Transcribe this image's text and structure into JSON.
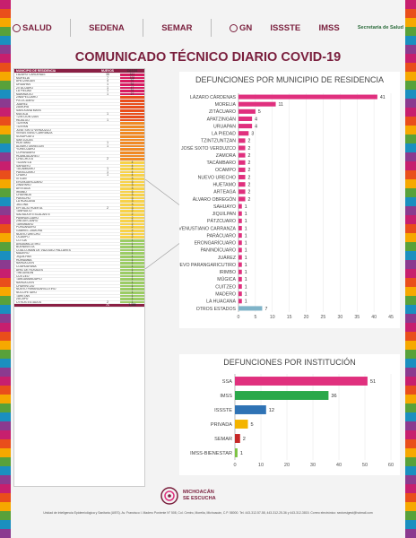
{
  "header": {
    "logos": [
      "SALUD",
      "SEDENA",
      "SEMAR",
      "GN",
      "ISSSTE",
      "IMSS",
      "Secretaría de Salud"
    ]
  },
  "title": "COMUNICADO TÉCNICO DIARIO COVID-19",
  "table": {
    "headers": [
      "MUNICIPIO DE RESIDENCIA",
      "NUEVOS",
      "CASOS"
    ],
    "rows": [
      [
        "LÁZARO CÁRDENAS",
        "38",
        "641"
      ],
      [
        "MORELIA",
        "7",
        "538"
      ],
      [
        "APATZINGÁN",
        "4",
        "91"
      ],
      [
        "URUAPAN",
        "1",
        "94"
      ],
      [
        "ZITÁCUARO",
        "1",
        "47"
      ],
      [
        "LA PIEDAD",
        "1",
        "31"
      ],
      [
        "MARAVATÍO",
        "1",
        "27"
      ],
      [
        "ZINAPÉCUARO",
        "",
        ""
      ],
      [
        "PÁTZCUARO",
        "",
        ""
      ],
      [
        "JUÁREZ",
        "",
        ""
      ],
      [
        "ZAMORA",
        "",
        ""
      ],
      [
        "SANTA ANA MAYA",
        "",
        ""
      ],
      [
        "MÚGICA",
        "1",
        ""
      ],
      [
        "TZINTZUNTZAN",
        "",
        ""
      ],
      [
        "HIDALGO",
        "1",
        ""
      ],
      [
        "TUXPAN",
        "",
        ""
      ],
      [
        "TUXPAN",
        "",
        ""
      ],
      [
        "JOSÉ SIXTO VERDUZCO",
        "",
        ""
      ],
      [
        "VENUSTIANO CARRANZA",
        "",
        ""
      ],
      [
        "SUSUPUATO",
        "",
        ""
      ],
      [
        "SAN LUCAS",
        "",
        ""
      ],
      [
        "HUETAMO",
        "1",
        ""
      ],
      [
        "ÁLVARO OBREGÓN",
        "1",
        ""
      ],
      [
        "YURÉCUARO",
        "",
        ""
      ],
      [
        "COPÁNDARO",
        "",
        ""
      ],
      [
        "HUANDACAREO",
        "",
        ""
      ],
      [
        "CHILCHOTA",
        "2",
        ""
      ],
      [
        "TUZANTLA",
        "",
        "4"
      ],
      [
        "SAHUAYO",
        "",
        "4"
      ],
      [
        "TACÁMBARO",
        "1",
        "4"
      ],
      [
        "PARÁCUARO",
        "1",
        "4"
      ],
      [
        "CHARO",
        "1",
        "4"
      ],
      [
        "IXTLÁN",
        "",
        "3"
      ],
      [
        "ERONGARÍCUARO",
        "",
        "3"
      ],
      [
        "ZINÁPARO",
        "",
        "3"
      ],
      [
        "ARTEAGA",
        "",
        "3"
      ],
      [
        "IRIMBO",
        "",
        "3"
      ],
      [
        "CHAVINDA",
        "",
        "3"
      ],
      [
        "PARACHO",
        "",
        "3"
      ],
      [
        "LA HUACANA",
        "",
        "3"
      ],
      [
        "JACONA",
        "",
        "3"
      ],
      [
        "EPITACIO HUERTA",
        "2",
        "3"
      ],
      [
        "TANHUATO",
        "",
        "2"
      ],
      [
        "SALVADOR ESCALANTE",
        "",
        "2"
      ],
      [
        "PANINDÍCUARO",
        "",
        "2"
      ],
      [
        "ZINGÜECUARO",
        "",
        "2"
      ],
      [
        "TARÍMBARO",
        "",
        "2"
      ],
      [
        "PURUÁNDIRO",
        "",
        "2"
      ],
      [
        "GABRIEL ZAMORA",
        "",
        "2"
      ],
      [
        "NUEVO URECHO",
        "",
        "2"
      ],
      [
        "OCAMPO",
        "",
        "2"
      ],
      [
        "COTIJA",
        "",
        "1"
      ],
      [
        "ANGAMACUTIRO",
        "",
        "1"
      ],
      [
        "BUENAVISTA",
        "",
        "1"
      ],
      [
        "COALCOMÁN DE VÁZQUEZ PALLARES",
        "",
        "1"
      ],
      [
        "MADERO",
        "",
        "1"
      ],
      [
        "JIQUILPAN",
        "",
        "1"
      ],
      [
        "HUIRAMBA",
        "",
        "1"
      ],
      [
        "NAHUATZEN",
        "",
        "1"
      ],
      [
        "COAHUAYANA",
        "",
        "1"
      ],
      [
        "ARIO DE ROSALES",
        "",
        "1"
      ],
      [
        "TINGÜINDIN",
        "",
        "1"
      ],
      [
        "CUITZEO",
        "",
        "1"
      ],
      [
        "TANGAMANDAPIO",
        "",
        "1"
      ],
      [
        "NAHUATZEN",
        "",
        "1"
      ],
      [
        "CHURINTZIO",
        "",
        "1"
      ],
      [
        "NUEVO PARANGARICUTIRO",
        "",
        "1"
      ],
      [
        "NOCUPÉTARO",
        "",
        "1"
      ],
      [
        "TARETAN",
        "",
        "1"
      ],
      [
        "ZACAPU",
        "",
        "1"
      ],
      [
        "OTROS ESTADOS",
        "2",
        "1"
      ],
      [
        "",
        "71",
        "1,386"
      ]
    ]
  },
  "chart_data": [
    {
      "type": "bar",
      "title": "DEFUNCIONES POR MUNICIPIO DE RESIDENCIA",
      "categories": [
        "LÁZARO CÁRDENAS",
        "MORELIA",
        "ZITÁCUARO",
        "APATZINGÁN",
        "URUAPAN",
        "LA PIEDAD",
        "TZINTZUNTZAN",
        "JOSÉ SIXTO VERDUZCO",
        "ZAMORA",
        "TACÁMBARO",
        "OCAMPO",
        "NUEVO URECHO",
        "HUETAMO",
        "ARTEAGA",
        "ÁLVARO OBREGÓN",
        "SAHUAYO",
        "JIQUILPAN",
        "PÁTZCUARO",
        "VENUSTIANO CARRANZA",
        "PARÁCUARO",
        "ERONGARÍCUARO",
        "PANINDÍCUARO",
        "JUÁREZ",
        "NUEVO PARANGARICUTIRO",
        "IRIMBO",
        "MÚGICA",
        "CUITZEO",
        "MADERO",
        "LA HUACANA",
        "OTROS ESTADOS"
      ],
      "values": [
        41,
        11,
        5,
        4,
        4,
        3,
        2,
        2,
        2,
        2,
        2,
        2,
        2,
        2,
        2,
        1,
        1,
        1,
        1,
        1,
        1,
        1,
        1,
        1,
        1,
        1,
        1,
        1,
        1,
        7
      ],
      "xlim": [
        0,
        45
      ],
      "xticks": [
        0,
        5,
        10,
        15,
        20,
        25,
        30,
        35,
        40,
        45
      ],
      "colors": {
        "main": "#e0307e",
        "last": "#7fb3c8"
      }
    },
    {
      "type": "bar",
      "title": "DEFUNCIONES POR INSTITUCIÓN",
      "categories": [
        "SSA",
        "IMSS",
        "ISSSTE",
        "PRIVADA",
        "SEMAR",
        "IMSS-BIENESTAR"
      ],
      "values": [
        51,
        36,
        12,
        5,
        2,
        1
      ],
      "xlim": [
        0,
        60
      ],
      "xticks": [
        0,
        10,
        20,
        30,
        40,
        50,
        60
      ],
      "colors": [
        "#e0307e",
        "#2aa84a",
        "#2f73b5",
        "#f4b400",
        "#c62828",
        "#7cc242"
      ]
    }
  ],
  "footer": {
    "logo_line1": "MICHOACÁN",
    "logo_line2": "SE ESCUCHA",
    "text": "Unidad de Inteligencia Epidemiológica y Sanitaria (UIES). Av. Francisco I. Madero Poniente N° 508, Col. Centro, Morelia, Michoacán, C.P. 58000. Tel. 443-312-57-58, 443-312-25-36 y 443-312-3815. Correo electrónico: sectorsigest@hotmail.com"
  }
}
